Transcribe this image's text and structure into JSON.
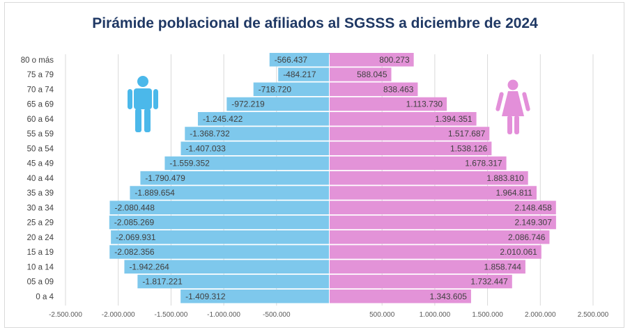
{
  "title": "Pirámide poblacional de afiliados al SGSSS a diciembre de  2024",
  "colors": {
    "male": "#7ec8ec",
    "female": "#e393d8",
    "male_icon": "#4bb8ea",
    "female_icon": "#e38fd9",
    "grid": "#d9d9d9"
  },
  "icons": {
    "male": "man-icon",
    "female": "woman-icon"
  },
  "chart_data": {
    "type": "bar",
    "orientation": "horizontal",
    "categories": [
      "80  o más",
      "75 a 79",
      "70 a 74",
      "65 a 69",
      "60 a 64",
      "55 a 59",
      "50 a 54",
      "45 a 49",
      "40 a 44",
      "35 a 39",
      "30 a 34",
      "25 a 29",
      "20 a 24",
      "15 a 19",
      "10 a 14",
      "05 a 09",
      "0 a 4"
    ],
    "series": [
      {
        "values": [
          -566437,
          -484217,
          -718720,
          -972219,
          -1245422,
          -1368732,
          -1407033,
          -1559352,
          -1790479,
          -1889654,
          -2080448,
          -2085269,
          -2069931,
          -2082356,
          -1942264,
          -1817221,
          -1409312
        ],
        "labels": [
          "-566.437",
          "-484.217",
          "-718.720",
          "-972.219",
          "-1.245.422",
          "-1.368.732",
          "-1.407.033",
          "-1.559.352",
          "-1.790.479",
          "-1.889.654",
          "-2.080.448",
          "-2.085.269",
          "-2.069.931",
          "-2.082.356",
          "-1.942.264",
          "-1.817.221",
          "-1.409.312"
        ]
      },
      {
        "values": [
          800273,
          588045,
          838463,
          1113730,
          1394351,
          1517687,
          1538126,
          1678317,
          1883810,
          1964811,
          2148458,
          2149307,
          2086746,
          2010061,
          1858744,
          1732447,
          1343605
        ],
        "labels": [
          "800.273",
          "588.045",
          "838.463",
          "1.113.730",
          "1.394.351",
          "1.517.687",
          "1.538.126",
          "1.678.317",
          "1.883.810",
          "1.964.811",
          "2.148.458",
          "2.149.307",
          "2.086.746",
          "2.010.061",
          "1.858.744",
          "1.732.447",
          "1.343.605"
        ]
      }
    ],
    "xlim": [
      -2500000,
      2500000
    ],
    "xticks": [
      -2500000,
      -2000000,
      -1500000,
      -1000000,
      -500000,
      500000,
      1000000,
      1500000,
      2000000,
      2500000
    ],
    "xtick_labels": [
      "-2.500.000",
      "-2.000.000",
      "-1.500.000",
      "-1.000.000",
      "-500.000",
      "500.000",
      "1.000.000",
      "1.500.000",
      "2.000.000",
      "2.500.000"
    ],
    "grid": true,
    "xlabel": "",
    "ylabel": ""
  }
}
